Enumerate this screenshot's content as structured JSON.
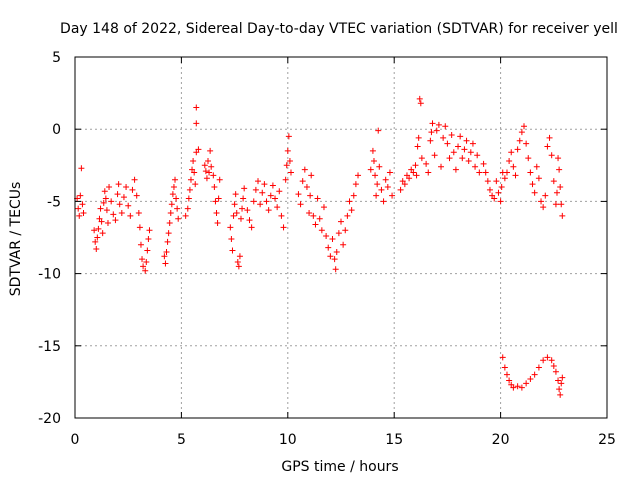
{
  "chart_data": {
    "type": "scatter",
    "title": "Day 148 of 2022, Sidereal Day-to-day VTEC variation (SDTVAR) for receiver yell",
    "xlabel": "GPS time / hours",
    "ylabel": "SDTVAR / TECUs",
    "xlim": [
      0,
      25
    ],
    "ylim": [
      -20,
      5
    ],
    "xticks": [
      0,
      5,
      10,
      15,
      20,
      25
    ],
    "yticks": [
      5,
      0,
      -5,
      -10,
      -15,
      -20
    ],
    "grid": true,
    "marker": "+",
    "color": "#ff0000",
    "series": [
      {
        "name": "SDTVAR",
        "points": [
          [
            0.1,
            -4.8
          ],
          [
            0.15,
            -5.5
          ],
          [
            0.2,
            -6.0
          ],
          [
            0.25,
            -4.6
          ],
          [
            0.3,
            -2.7
          ],
          [
            0.35,
            -5.2
          ],
          [
            0.4,
            -5.8
          ],
          [
            0.9,
            -7.0
          ],
          [
            0.95,
            -7.8
          ],
          [
            1.0,
            -8.3
          ],
          [
            1.05,
            -7.5
          ],
          [
            1.1,
            -6.9
          ],
          [
            1.15,
            -6.2
          ],
          [
            1.2,
            -5.5
          ],
          [
            1.25,
            -6.4
          ],
          [
            1.3,
            -7.2
          ],
          [
            1.35,
            -5.1
          ],
          [
            1.4,
            -4.3
          ],
          [
            1.45,
            -4.8
          ],
          [
            1.5,
            -5.6
          ],
          [
            1.55,
            -6.5
          ],
          [
            1.6,
            -4.0
          ],
          [
            1.7,
            -5.0
          ],
          [
            1.8,
            -5.9
          ],
          [
            1.9,
            -6.3
          ],
          [
            2.0,
            -4.5
          ],
          [
            2.05,
            -3.8
          ],
          [
            2.1,
            -5.2
          ],
          [
            2.2,
            -5.8
          ],
          [
            2.3,
            -4.7
          ],
          [
            2.4,
            -4.0
          ],
          [
            2.5,
            -5.3
          ],
          [
            2.6,
            -6.0
          ],
          [
            2.7,
            -4.2
          ],
          [
            2.8,
            -3.5
          ],
          [
            2.9,
            -4.6
          ],
          [
            3.0,
            -5.8
          ],
          [
            3.05,
            -6.8
          ],
          [
            3.1,
            -8.0
          ],
          [
            3.15,
            -9.0
          ],
          [
            3.2,
            -9.5
          ],
          [
            3.3,
            -9.8
          ],
          [
            3.35,
            -9.2
          ],
          [
            3.4,
            -8.4
          ],
          [
            3.45,
            -7.6
          ],
          [
            3.5,
            -7.0
          ],
          [
            4.2,
            -8.8
          ],
          [
            4.25,
            -9.3
          ],
          [
            4.3,
            -8.5
          ],
          [
            4.35,
            -7.8
          ],
          [
            4.4,
            -7.2
          ],
          [
            4.45,
            -6.5
          ],
          [
            4.5,
            -5.8
          ],
          [
            4.55,
            -5.2
          ],
          [
            4.6,
            -4.5
          ],
          [
            4.65,
            -4.0
          ],
          [
            4.7,
            -3.5
          ],
          [
            4.75,
            -4.8
          ],
          [
            4.8,
            -5.5
          ],
          [
            4.85,
            -6.2
          ],
          [
            5.2,
            -6.0
          ],
          [
            5.3,
            -5.5
          ],
          [
            5.35,
            -4.8
          ],
          [
            5.4,
            -4.2
          ],
          [
            5.45,
            -3.5
          ],
          [
            5.5,
            -2.8
          ],
          [
            5.55,
            -2.2
          ],
          [
            5.6,
            -3.0
          ],
          [
            5.65,
            -3.8
          ],
          [
            5.7,
            -1.6
          ],
          [
            5.8,
            -1.4
          ],
          [
            5.7,
            1.5
          ],
          [
            5.7,
            0.4
          ],
          [
            6.1,
            -2.5
          ],
          [
            6.15,
            -2.9
          ],
          [
            6.2,
            -3.4
          ],
          [
            6.25,
            -2.2
          ],
          [
            6.3,
            -3.0
          ],
          [
            6.35,
            -1.5
          ],
          [
            6.4,
            -2.6
          ],
          [
            6.5,
            -3.2
          ],
          [
            6.55,
            -4.0
          ],
          [
            6.6,
            -5.0
          ],
          [
            6.65,
            -5.8
          ],
          [
            6.7,
            -6.5
          ],
          [
            6.75,
            -4.8
          ],
          [
            6.8,
            -3.5
          ],
          [
            7.3,
            -6.8
          ],
          [
            7.35,
            -7.6
          ],
          [
            7.4,
            -8.4
          ],
          [
            7.45,
            -6.0
          ],
          [
            7.5,
            -5.2
          ],
          [
            7.55,
            -4.5
          ],
          [
            7.6,
            -5.8
          ],
          [
            7.65,
            -9.2
          ],
          [
            7.7,
            -9.5
          ],
          [
            7.75,
            -8.8
          ],
          [
            7.8,
            -6.2
          ],
          [
            7.85,
            -5.5
          ],
          [
            7.9,
            -4.8
          ],
          [
            7.95,
            -4.1
          ],
          [
            8.1,
            -5.6
          ],
          [
            8.2,
            -6.3
          ],
          [
            8.3,
            -6.8
          ],
          [
            8.4,
            -5.0
          ],
          [
            8.5,
            -4.2
          ],
          [
            8.6,
            -3.6
          ],
          [
            8.7,
            -5.2
          ],
          [
            8.8,
            -4.4
          ],
          [
            8.9,
            -3.8
          ],
          [
            9.0,
            -5.0
          ],
          [
            9.1,
            -5.6
          ],
          [
            9.2,
            -4.6
          ],
          [
            9.3,
            -3.9
          ],
          [
            9.4,
            -4.8
          ],
          [
            9.5,
            -5.4
          ],
          [
            9.6,
            -4.3
          ],
          [
            9.7,
            -6.0
          ],
          [
            9.8,
            -6.8
          ],
          [
            9.9,
            -3.5
          ],
          [
            9.95,
            -2.5
          ],
          [
            10.0,
            -1.5
          ],
          [
            10.05,
            -0.5
          ],
          [
            10.1,
            -2.2
          ],
          [
            10.15,
            -3.0
          ],
          [
            10.5,
            -4.5
          ],
          [
            10.6,
            -5.2
          ],
          [
            10.7,
            -3.6
          ],
          [
            10.8,
            -2.8
          ],
          [
            10.9,
            -4.0
          ],
          [
            11.0,
            -5.8
          ],
          [
            11.05,
            -4.6
          ],
          [
            11.1,
            -3.2
          ],
          [
            11.2,
            -6.0
          ],
          [
            11.3,
            -6.6
          ],
          [
            11.4,
            -4.8
          ],
          [
            11.5,
            -6.2
          ],
          [
            11.6,
            -7.0
          ],
          [
            11.7,
            -5.4
          ],
          [
            11.8,
            -7.4
          ],
          [
            11.9,
            -8.2
          ],
          [
            12.0,
            -8.8
          ],
          [
            12.1,
            -7.6
          ],
          [
            12.2,
            -9.0
          ],
          [
            12.25,
            -9.7
          ],
          [
            12.3,
            -8.5
          ],
          [
            12.4,
            -7.2
          ],
          [
            12.5,
            -6.4
          ],
          [
            12.6,
            -8.0
          ],
          [
            12.7,
            -7.0
          ],
          [
            12.8,
            -6.0
          ],
          [
            12.9,
            -5.0
          ],
          [
            13.0,
            -5.6
          ],
          [
            13.1,
            -4.6
          ],
          [
            13.2,
            -3.8
          ],
          [
            13.3,
            -3.2
          ],
          [
            13.9,
            -2.8
          ],
          [
            14.0,
            -1.5
          ],
          [
            14.05,
            -2.2
          ],
          [
            14.1,
            -3.2
          ],
          [
            14.15,
            -4.6
          ],
          [
            14.2,
            -3.8
          ],
          [
            14.25,
            -0.1
          ],
          [
            14.3,
            -2.6
          ],
          [
            14.4,
            -4.2
          ],
          [
            14.5,
            -5.0
          ],
          [
            14.6,
            -3.5
          ],
          [
            14.7,
            -4.0
          ],
          [
            14.8,
            -3.0
          ],
          [
            14.9,
            -4.6
          ],
          [
            15.3,
            -4.2
          ],
          [
            15.4,
            -3.6
          ],
          [
            15.5,
            -3.8
          ],
          [
            15.6,
            -3.2
          ],
          [
            15.7,
            -3.4
          ],
          [
            15.8,
            -2.8
          ],
          [
            15.9,
            -3.0
          ],
          [
            16.0,
            -2.5
          ],
          [
            16.05,
            -3.2
          ],
          [
            16.1,
            -1.2
          ],
          [
            16.15,
            -0.6
          ],
          [
            16.2,
            2.1
          ],
          [
            16.25,
            1.8
          ],
          [
            16.3,
            -2.0
          ],
          [
            16.5,
            -2.4
          ],
          [
            16.6,
            -3.0
          ],
          [
            16.7,
            -0.8
          ],
          [
            16.75,
            -0.2
          ],
          [
            16.8,
            0.4
          ],
          [
            16.9,
            -1.8
          ],
          [
            17.0,
            -0.1
          ],
          [
            17.1,
            0.3
          ],
          [
            17.2,
            -2.6
          ],
          [
            17.3,
            -0.6
          ],
          [
            17.4,
            0.2
          ],
          [
            17.5,
            -1.0
          ],
          [
            17.6,
            -2.0
          ],
          [
            17.7,
            -0.4
          ],
          [
            17.8,
            -1.6
          ],
          [
            17.9,
            -2.8
          ],
          [
            18.0,
            -1.2
          ],
          [
            18.1,
            -0.5
          ],
          [
            18.2,
            -2.0
          ],
          [
            18.3,
            -1.4
          ],
          [
            18.4,
            -0.8
          ],
          [
            18.5,
            -2.2
          ],
          [
            18.6,
            -1.6
          ],
          [
            18.7,
            -1.0
          ],
          [
            18.8,
            -2.6
          ],
          [
            18.9,
            -1.8
          ],
          [
            19.0,
            -3.0
          ],
          [
            19.2,
            -2.4
          ],
          [
            19.3,
            -3.0
          ],
          [
            19.4,
            -3.6
          ],
          [
            19.5,
            -4.2
          ],
          [
            19.6,
            -4.6
          ],
          [
            19.7,
            -4.8
          ],
          [
            19.8,
            -3.6
          ],
          [
            19.9,
            -4.4
          ],
          [
            20.0,
            -5.0
          ],
          [
            20.05,
            -4.0
          ],
          [
            20.1,
            -3.0
          ],
          [
            20.2,
            -3.4
          ],
          [
            20.3,
            -3.0
          ],
          [
            20.4,
            -2.2
          ],
          [
            20.5,
            -1.6
          ],
          [
            20.6,
            -2.6
          ],
          [
            20.7,
            -3.2
          ],
          [
            20.8,
            -1.4
          ],
          [
            20.9,
            -0.8
          ],
          [
            21.0,
            -0.2
          ],
          [
            21.1,
            0.2
          ],
          [
            21.2,
            -1.0
          ],
          [
            21.3,
            -2.0
          ],
          [
            21.4,
            -3.0
          ],
          [
            21.5,
            -3.8
          ],
          [
            21.6,
            -4.4
          ],
          [
            21.7,
            -2.6
          ],
          [
            21.8,
            -3.4
          ],
          [
            21.9,
            -5.0
          ],
          [
            22.0,
            -5.4
          ],
          [
            22.1,
            -4.6
          ],
          [
            22.2,
            -1.2
          ],
          [
            22.3,
            -0.6
          ],
          [
            22.4,
            -1.8
          ],
          [
            22.5,
            -3.6
          ],
          [
            22.6,
            -5.2
          ],
          [
            22.65,
            -4.4
          ],
          [
            22.7,
            -2.0
          ],
          [
            22.75,
            -2.8
          ],
          [
            22.8,
            -4.0
          ],
          [
            22.85,
            -5.2
          ],
          [
            22.9,
            -6.0
          ],
          [
            20.1,
            -15.8
          ],
          [
            20.2,
            -16.5
          ],
          [
            20.3,
            -17.0
          ],
          [
            20.4,
            -17.4
          ],
          [
            20.5,
            -17.7
          ],
          [
            20.6,
            -17.9
          ],
          [
            20.8,
            -17.8
          ],
          [
            21.0,
            -17.9
          ],
          [
            21.2,
            -17.6
          ],
          [
            21.4,
            -17.3
          ],
          [
            21.6,
            -17.0
          ],
          [
            21.8,
            -16.5
          ],
          [
            22.0,
            -16.0
          ],
          [
            22.2,
            -15.8
          ],
          [
            22.4,
            -16.0
          ],
          [
            22.5,
            -16.4
          ],
          [
            22.6,
            -16.8
          ],
          [
            22.7,
            -17.4
          ],
          [
            22.75,
            -18.0
          ],
          [
            22.8,
            -18.4
          ],
          [
            22.85,
            -17.6
          ],
          [
            22.9,
            -17.2
          ]
        ]
      }
    ]
  }
}
